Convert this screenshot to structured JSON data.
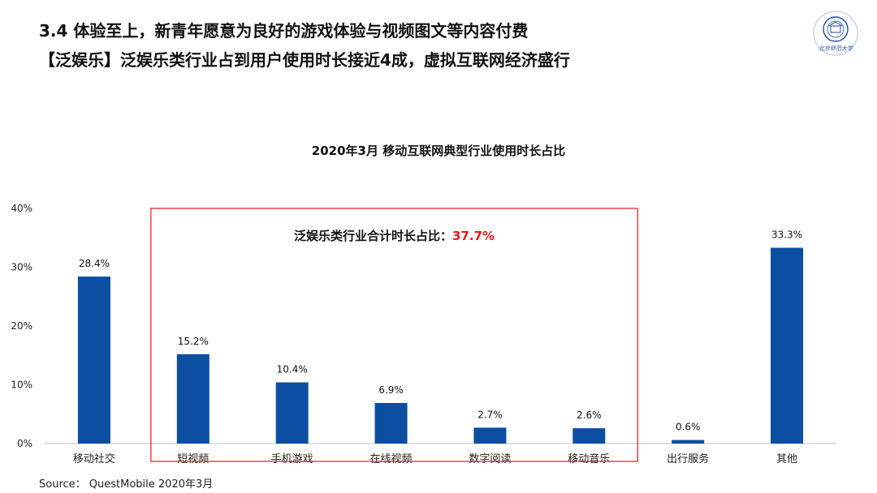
{
  "header": {
    "title": "3.4 体验至上，新青年愿意为良好的游戏体验与视频图文等内容付费",
    "subtitle": "【泛娱乐】泛娱乐类行业占到用户使用时长接近4成，虚拟互联网经济盛行"
  },
  "logo_text": "北京师范大学",
  "chart_data": {
    "type": "bar",
    "title": "2020年3月 移动互联网典型行业使用时长占比",
    "categories": [
      "移动社交",
      "短视频",
      "手机游戏",
      "在线视频",
      "数字阅读",
      "移动音乐",
      "出行服务",
      "其他"
    ],
    "values": [
      28.4,
      15.2,
      10.4,
      6.9,
      2.7,
      2.6,
      0.6,
      33.3
    ],
    "value_labels": [
      "28.4%",
      "15.2%",
      "10.4%",
      "6.9%",
      "2.7%",
      "2.6%",
      "0.6%",
      "33.3%"
    ],
    "y_ticks": [
      "0%",
      "10%",
      "20%",
      "30%",
      "40%"
    ],
    "ylim": [
      0,
      40
    ],
    "bar_color": "#0B4EA2",
    "annotation": {
      "text": "泛娱乐类行业合计时长占比：",
      "value": "37.7%",
      "value_color": "#E8141B",
      "box_color": "#E8141B",
      "covers": [
        1,
        5
      ]
    }
  },
  "source": "Source：  QuestMobile 2020年3月"
}
